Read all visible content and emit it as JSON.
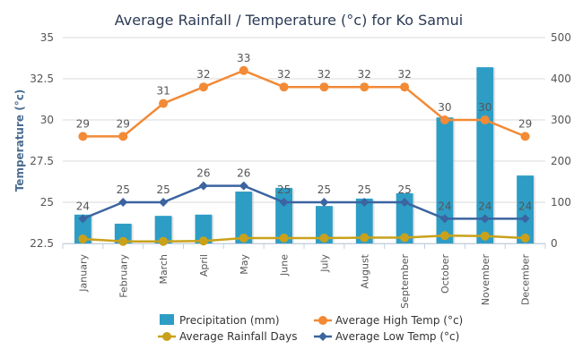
{
  "chart_data": {
    "type": "bar",
    "title": "Average Rainfall / Temperature (°c) for Ko Samui",
    "ylabel": "Temperature (°c)",
    "y2label": "",
    "xlabel": "",
    "categories": [
      "January",
      "February",
      "March",
      "April",
      "May",
      "June",
      "July",
      "August",
      "September",
      "October",
      "November",
      "December"
    ],
    "ylim": [
      22.5,
      35
    ],
    "y2lim": [
      0,
      500
    ],
    "yticks": [
      "22.5",
      "25",
      "27.5",
      "30",
      "32.5",
      "35"
    ],
    "y2ticks": [
      "0",
      "100",
      "200",
      "300",
      "400",
      "500"
    ],
    "grid": true,
    "legend_position": "bottom",
    "series": [
      {
        "name": "Precipitation (mm)",
        "type": "bar",
        "axis": "right",
        "color": "#2e9dc5",
        "values": [
          70,
          48,
          67,
          70,
          126,
          135,
          91,
          109,
          122,
          306,
          428,
          165
        ]
      },
      {
        "name": "Average High Temp (°c)",
        "type": "line",
        "axis": "left",
        "marker": "circle",
        "color": "#f28a36",
        "labels": true,
        "values": [
          29,
          29,
          31,
          32,
          33,
          32,
          32,
          32,
          32,
          30,
          30,
          29
        ]
      },
      {
        "name": "Average Rainfall Days",
        "type": "line",
        "axis": "right",
        "marker": "circle",
        "color": "#c9a11a",
        "labels": false,
        "values": [
          11,
          5,
          5,
          6,
          13,
          13,
          13,
          14,
          14,
          19,
          18,
          13
        ]
      },
      {
        "name": "Average Low Temp (°c)",
        "type": "line",
        "axis": "left",
        "marker": "diamond",
        "color": "#3b64a0",
        "labels": true,
        "values": [
          24,
          25,
          25,
          26,
          26,
          25,
          25,
          25,
          25,
          24,
          24,
          24
        ]
      }
    ]
  }
}
